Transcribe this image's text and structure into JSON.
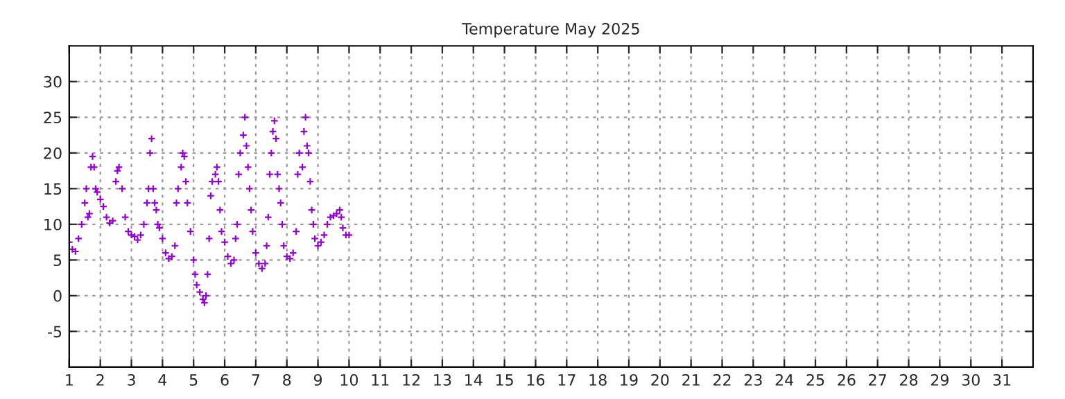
{
  "chart_data": {
    "type": "scatter",
    "title": "Temperature May 2025",
    "x": [
      1.0,
      1.1,
      1.2,
      1.3,
      1.4,
      1.5,
      1.55,
      1.6,
      1.65,
      1.7,
      1.75,
      1.8,
      1.85,
      1.9,
      2.0,
      2.1,
      2.2,
      2.3,
      2.4,
      2.5,
      2.55,
      2.6,
      2.7,
      2.8,
      2.9,
      3.0,
      3.1,
      3.2,
      3.3,
      3.4,
      3.5,
      3.55,
      3.6,
      3.65,
      3.7,
      3.75,
      3.8,
      3.85,
      3.9,
      4.0,
      4.1,
      4.2,
      4.3,
      4.4,
      4.45,
      4.5,
      4.6,
      4.65,
      4.7,
      4.75,
      4.8,
      4.9,
      5.0,
      5.05,
      5.1,
      5.2,
      5.3,
      5.35,
      5.4,
      5.45,
      5.5,
      5.55,
      5.6,
      5.7,
      5.75,
      5.8,
      5.85,
      5.9,
      6.0,
      6.1,
      6.2,
      6.3,
      6.35,
      6.4,
      6.45,
      6.5,
      6.6,
      6.65,
      6.7,
      6.75,
      6.8,
      6.85,
      6.9,
      7.0,
      7.1,
      7.2,
      7.3,
      7.35,
      7.4,
      7.45,
      7.5,
      7.55,
      7.6,
      7.65,
      7.7,
      7.75,
      7.8,
      7.85,
      7.9,
      8.0,
      8.1,
      8.2,
      8.3,
      8.35,
      8.4,
      8.5,
      8.55,
      8.6,
      8.65,
      8.7,
      8.75,
      8.8,
      8.85,
      8.9,
      9.0,
      9.1,
      9.2,
      9.3,
      9.4,
      9.5,
      9.6,
      9.7,
      9.75,
      9.8,
      9.9,
      10.0
    ],
    "series": [
      {
        "color": "#9400d3",
        "values": [
          7.5,
          6.5,
          6.2,
          8,
          10,
          13,
          15,
          11,
          11.5,
          18,
          19.5,
          18,
          15,
          14.5,
          13.5,
          12.5,
          11,
          10.2,
          10.5,
          16,
          17.5,
          18,
          15,
          11,
          9,
          8.5,
          8.3,
          7.8,
          8.5,
          10,
          13,
          15,
          20,
          22,
          15,
          13,
          12,
          10,
          9.5,
          8,
          6,
          5.2,
          5.5,
          7,
          13,
          15,
          18,
          20,
          19.5,
          16,
          13,
          9,
          5,
          3,
          1.5,
          0.5,
          -0.5,
          -1,
          0,
          3,
          8,
          14,
          16,
          17,
          18,
          16,
          12,
          9,
          7.5,
          5.5,
          4.5,
          5,
          8,
          10,
          17,
          20,
          22.5,
          25,
          21,
          18,
          15,
          12,
          9,
          6,
          4.5,
          3.8,
          4.5,
          7,
          11,
          17,
          20,
          23,
          24.5,
          22,
          17,
          15,
          13,
          10,
          7,
          5.5,
          5.2,
          6,
          9,
          17,
          20,
          18,
          23,
          25,
          21,
          20,
          16,
          12,
          10,
          8,
          7,
          7.5,
          8.5,
          10,
          11,
          11.2,
          11.5,
          12,
          11,
          9.5,
          8.5,
          8.5
        ]
      }
    ],
    "xlim": [
      1,
      32
    ],
    "xticks": [
      1,
      2,
      3,
      4,
      5,
      6,
      7,
      8,
      9,
      10,
      11,
      12,
      13,
      14,
      15,
      16,
      17,
      18,
      19,
      20,
      21,
      22,
      23,
      24,
      25,
      26,
      27,
      28,
      29,
      30,
      31
    ],
    "ylim": [
      -10,
      35
    ],
    "yticks": [
      -5,
      0,
      5,
      10,
      15,
      20,
      25,
      30
    ],
    "grid": true,
    "marker": "cross",
    "legend": false
  }
}
